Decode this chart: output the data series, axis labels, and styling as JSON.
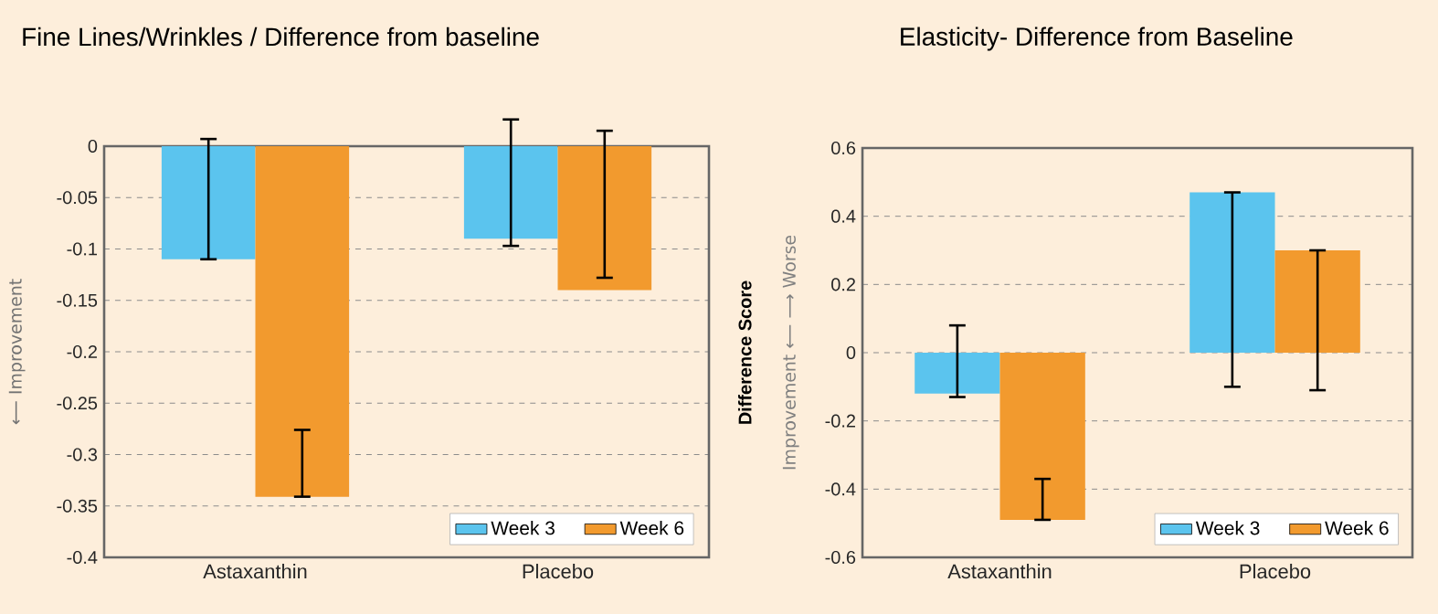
{
  "chart_data": [
    {
      "type": "bar",
      "title": "Fine Lines/Wrinkles / Difference from baseline",
      "ylabel": "⟵ Improvement",
      "categories": [
        "Astaxanthin",
        "Placebo"
      ],
      "series": [
        {
          "name": "Week 3",
          "color": "#5bc4ee",
          "values": [
            -0.11,
            -0.09
          ],
          "errors": [
            [
              -0.11,
              0.007
            ],
            [
              -0.097,
              0.026
            ]
          ]
        },
        {
          "name": "Week 6",
          "color": "#f29a2e",
          "values": [
            -0.341,
            -0.14
          ],
          "errors": [
            [
              -0.341,
              -0.276
            ],
            [
              -0.128,
              0.015
            ]
          ]
        }
      ],
      "ylim": [
        -0.4,
        0
      ],
      "yticks": [
        0,
        -0.05,
        -0.1,
        -0.15,
        -0.2,
        -0.25,
        -0.3,
        -0.35,
        -0.4
      ],
      "grid": "y",
      "legend": "bottom right"
    },
    {
      "type": "bar",
      "title": "Elasticity- Difference from Baseline",
      "ylabel": "Difference Score",
      "annotations": [
        "Improvement ⟵   ⟶ Worse"
      ],
      "categories": [
        "Astaxanthin",
        "Placebo"
      ],
      "series": [
        {
          "name": "Week 3",
          "color": "#5bc4ee",
          "values": [
            -0.12,
            0.47
          ],
          "errors": [
            [
              -0.13,
              0.08
            ],
            [
              -0.1,
              0.47
            ]
          ]
        },
        {
          "name": "Week 6",
          "color": "#f29a2e",
          "values": [
            -0.49,
            0.3
          ],
          "errors": [
            [
              -0.49,
              -0.37
            ],
            [
              -0.11,
              0.3
            ]
          ]
        }
      ],
      "ylim": [
        -0.6,
        0.6
      ],
      "yticks": [
        0.6,
        0.4,
        0.2,
        0,
        -0.2,
        -0.4,
        -0.6
      ],
      "grid": "y",
      "legend": "bottom right"
    }
  ]
}
